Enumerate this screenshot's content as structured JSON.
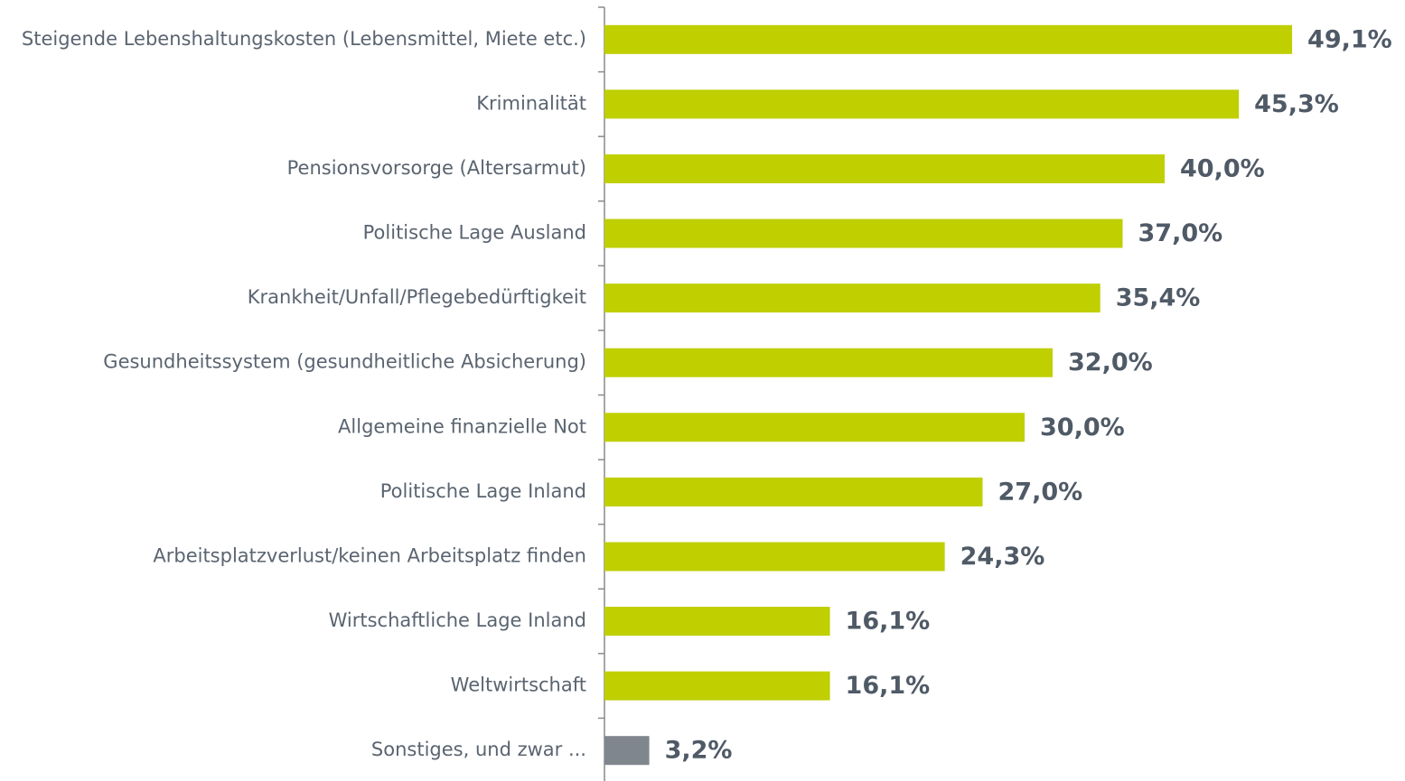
{
  "chart_data": {
    "type": "bar",
    "orientation": "horizontal",
    "categories": [
      "Steigende Lebenshaltungskosten (Lebensmittel, Miete etc.)",
      "Kriminalität",
      "Pensionsvorsorge (Altersarmut)",
      "Politische Lage Ausland",
      "Krankheit/Unfall/Pflegebedürftigkeit",
      "Gesundheitssystem (gesundheitliche Absicherung)",
      "Allgemeine finanzielle Not",
      "Politische Lage Inland",
      "Arbeitsplatzverlust/keinen Arbeitsplatz finden",
      "Wirtschaftliche Lage Inland",
      "Weltwirtschaft",
      "Sonstiges, und zwar ..."
    ],
    "values": [
      49.1,
      45.3,
      40.0,
      37.0,
      35.4,
      32.0,
      30.0,
      27.0,
      24.3,
      16.1,
      16.1,
      3.2
    ],
    "value_labels": [
      "49,1%",
      "45,3%",
      "40,0%",
      "37,0%",
      "35,4%",
      "32,0%",
      "30,0%",
      "27,0%",
      "24,3%",
      "16,1%",
      "16,1%",
      "3,2%"
    ],
    "colors": [
      "#bfcf00",
      "#bfcf00",
      "#bfcf00",
      "#bfcf00",
      "#bfcf00",
      "#bfcf00",
      "#bfcf00",
      "#bfcf00",
      "#bfcf00",
      "#bfcf00",
      "#bfcf00",
      "#80868e"
    ],
    "xlim": [
      0,
      55
    ]
  }
}
